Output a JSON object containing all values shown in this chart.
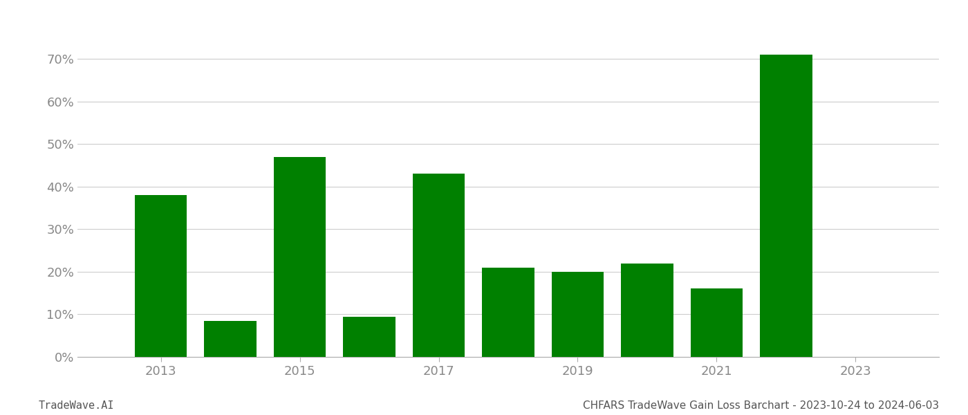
{
  "years": [
    2013,
    2014,
    2015,
    2016,
    2017,
    2018,
    2019,
    2020,
    2021,
    2022
  ],
  "values": [
    0.38,
    0.085,
    0.47,
    0.095,
    0.43,
    0.21,
    0.2,
    0.22,
    0.16,
    0.71
  ],
  "bar_color": "#008000",
  "xtick_labels": [
    "2013",
    "2015",
    "2017",
    "2019",
    "2021",
    "2023"
  ],
  "xtick_positions": [
    2013,
    2015,
    2017,
    2019,
    2021,
    2023
  ],
  "ylim": [
    0,
    0.76
  ],
  "ytick_values": [
    0.0,
    0.1,
    0.2,
    0.3,
    0.4,
    0.5,
    0.6,
    0.7
  ],
  "grid_color": "#cccccc",
  "background_color": "#ffffff",
  "footer_left": "TradeWave.AI",
  "footer_right": "CHFARS TradeWave Gain Loss Barchart - 2023-10-24 to 2024-06-03",
  "footer_fontsize": 11,
  "tick_label_color": "#888888",
  "bar_width": 0.75,
  "xlim": [
    2011.8,
    2024.2
  ]
}
